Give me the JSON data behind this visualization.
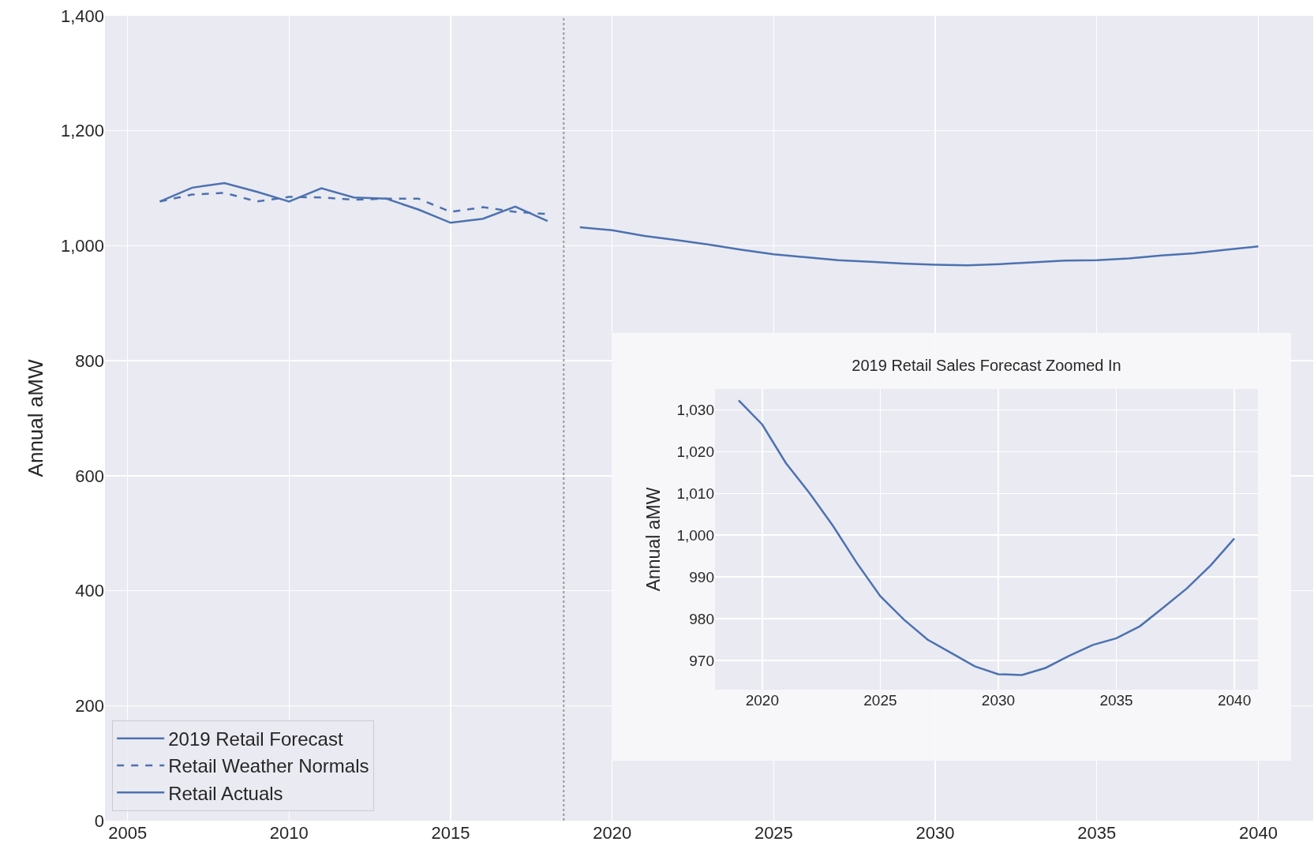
{
  "chart_data": [
    {
      "type": "line",
      "ylabel": "Annual aMW",
      "xlim": [
        2004.3,
        2041.7
      ],
      "ylim": [
        0,
        1400
      ],
      "xticks": [
        2005,
        2010,
        2015,
        2020,
        2025,
        2030,
        2035,
        2040
      ],
      "yticks": [
        0,
        200,
        400,
        600,
        800,
        {
          "value": 1000,
          "label": "1,000"
        },
        {
          "value": 1200,
          "label": "1,200"
        },
        {
          "value": 1400,
          "label": "1,400"
        }
      ],
      "grid": true,
      "legend": "bottom left",
      "marker": "none",
      "ref_lines": [
        {
          "axis": "x",
          "value": 2018.5,
          "color": "#999999",
          "line_style": "dotted"
        }
      ],
      "series": [
        {
          "name": "2019 Retail Forecast",
          "color": "#4c72b0",
          "line_style": "solid",
          "x": [
            2019,
            2020,
            2021,
            2022,
            2023,
            2024,
            2025,
            2026,
            2027,
            2028,
            2029,
            2030,
            2031,
            2032,
            2033,
            2034,
            2035,
            2036,
            2037,
            2038,
            2039,
            2040
          ],
          "values": [
            1032,
            1027,
            1017,
            1010,
            1002,
            993,
            985,
            980,
            975,
            972,
            969,
            967,
            966,
            968,
            971,
            974,
            975,
            978,
            983,
            987,
            993,
            999
          ]
        },
        {
          "name": "Retail Weather Normals",
          "color": "#4c72b0",
          "line_style": "dashed",
          "x": [
            2006,
            2007,
            2008,
            2009,
            2010,
            2011,
            2012,
            2013,
            2014,
            2015,
            2016,
            2017,
            2018
          ],
          "values": [
            1077,
            1089,
            1092,
            1077,
            1085,
            1084,
            1080,
            1082,
            1082,
            1059,
            1067,
            1059,
            1055
          ]
        },
        {
          "name": "Retail Actuals",
          "color": "#4c72b0",
          "line_style": "solid",
          "x": [
            2006,
            2007,
            2008,
            2009,
            2010,
            2011,
            2012,
            2013,
            2014,
            2015,
            2016,
            2017,
            2018
          ],
          "values": [
            1077,
            1101,
            1109,
            1094,
            1077,
            1100,
            1084,
            1082,
            1063,
            1040,
            1047,
            1068,
            1043
          ]
        }
      ]
    },
    {
      "type": "line",
      "title": "2019 Retail Sales Forecast Zoomed In",
      "ylabel": "Annual aMW",
      "xlim": [
        2018,
        2041
      ],
      "ylim": [
        963,
        1035
      ],
      "xticks": [
        2020,
        2025,
        2030,
        2035,
        2040
      ],
      "yticks": [
        970,
        980,
        990,
        {
          "value": 1000,
          "label": "1,000"
        },
        {
          "value": 1010,
          "label": "1,010"
        },
        {
          "value": 1020,
          "label": "1,020"
        },
        {
          "value": 1030,
          "label": "1,030"
        }
      ],
      "grid": true,
      "marker": "none",
      "line_style": "solid",
      "series": [
        {
          "color": "#4c72b0",
          "x": [
            2019,
            2020,
            2021,
            2022,
            2023,
            2024,
            2025,
            2026,
            2027,
            2028,
            2029,
            2030,
            2031,
            2032,
            2033,
            2034,
            2035,
            2036,
            2037,
            2038,
            2039,
            2040
          ],
          "values": [
            1032.3,
            1026.5,
            1017.3,
            1010.1,
            1002.2,
            993.4,
            985.4,
            979.8,
            975.0,
            971.8,
            968.6,
            966.7,
            966.5,
            968.2,
            971.1,
            973.7,
            975.3,
            978.2,
            982.7,
            987.3,
            992.8,
            999.2
          ]
        }
      ]
    }
  ]
}
